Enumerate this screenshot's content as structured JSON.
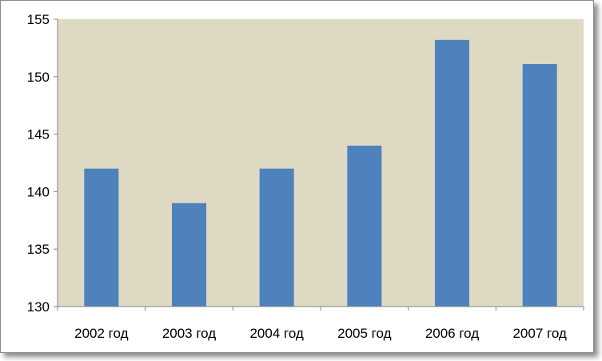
{
  "chart_data": {
    "type": "bar",
    "categories": [
      "2002 год",
      "2003 год",
      "2004 год",
      "2005 год",
      "2006 год",
      "2007 год"
    ],
    "values": [
      142,
      139,
      142,
      144,
      153.2,
      151.1
    ],
    "ylim": [
      130,
      155
    ],
    "yticks": [
      130,
      135,
      140,
      145,
      150,
      155
    ],
    "title": "",
    "xlabel": "",
    "ylabel": "",
    "grid": false,
    "legend": "none",
    "colors": {
      "bar": "#4f81bd",
      "plot_background": "#ddd9c3",
      "axis": "#868686"
    }
  }
}
